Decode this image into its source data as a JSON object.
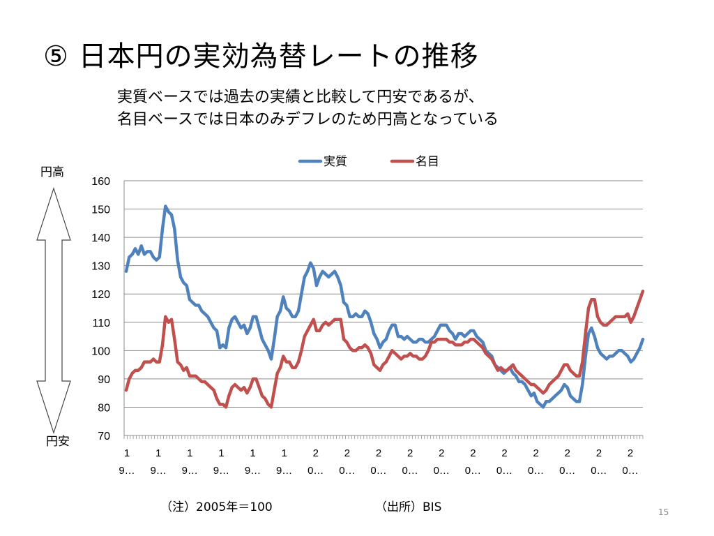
{
  "slide": {
    "title": "⑤ 日本円の実効為替レートの推移",
    "subtitle_lines": [
      "実質ベースでは過去の実績と比較して円安であるが、",
      "名目ベースでは日本のみデフレのため円高となっている"
    ],
    "label_high": "円高",
    "label_low": "円安",
    "note": "（注）2005年＝100",
    "source": "（出所）BIS",
    "page_number": "15"
  },
  "chart_data": {
    "type": "line",
    "ylim": [
      70,
      160
    ],
    "yticks": [
      "70",
      "80",
      "90",
      "100",
      "110",
      "120",
      "130",
      "140",
      "150",
      "160"
    ],
    "xtick_labels": [
      [
        "1",
        "9…"
      ],
      [
        "1",
        "9…"
      ],
      [
        "1",
        "9…"
      ],
      [
        "1",
        "9…"
      ],
      [
        "1",
        "9…"
      ],
      [
        "1",
        "9…"
      ],
      [
        "2",
        "0…"
      ],
      [
        "2",
        "0…"
      ],
      [
        "2",
        "0…"
      ],
      [
        "2",
        "0…"
      ],
      [
        "2",
        "0…"
      ],
      [
        "2",
        "0…"
      ],
      [
        "2",
        "0…"
      ],
      [
        "2",
        "0…"
      ],
      [
        "2",
        "0…"
      ],
      [
        "2",
        "0…"
      ],
      [
        "2",
        "0…"
      ]
    ],
    "legend_position": "top",
    "grid": true,
    "colors": {
      "real": "#4f81bd",
      "nominal": "#c0504d"
    },
    "series": [
      {
        "name": "実質",
        "color": "#4f81bd",
        "values": [
          128,
          133,
          134,
          136,
          134,
          137,
          134,
          135,
          135,
          133,
          132,
          133,
          143,
          151,
          149,
          148,
          143,
          132,
          126,
          124,
          123,
          118,
          117,
          116,
          116,
          114,
          113,
          112,
          110,
          108,
          107,
          101,
          102,
          101,
          108,
          111,
          112,
          110,
          108,
          109,
          106,
          108,
          112,
          112,
          108,
          104,
          102,
          100,
          97,
          104,
          112,
          114,
          119,
          115,
          114,
          112,
          112,
          114,
          120,
          126,
          128,
          131,
          129,
          123,
          126,
          128,
          127,
          126,
          127,
          128,
          126,
          123,
          117,
          116,
          112,
          112,
          113,
          112,
          112,
          114,
          113,
          110,
          106,
          104,
          101,
          103,
          104,
          107,
          109,
          109,
          105,
          105,
          104,
          105,
          104,
          103,
          103,
          104,
          104,
          103,
          103,
          104,
          105,
          107,
          109,
          109,
          109,
          107,
          106,
          104,
          106,
          106,
          105,
          106,
          107,
          107,
          105,
          104,
          103,
          100,
          99,
          98,
          95,
          94,
          93,
          92,
          93,
          94,
          92,
          91,
          89,
          89,
          88,
          86,
          84,
          85,
          82,
          81,
          80,
          82,
          82,
          83,
          84,
          85,
          86,
          88,
          87,
          84,
          83,
          82,
          82,
          88,
          98,
          106,
          108,
          105,
          101,
          99,
          98,
          97,
          98,
          98,
          99,
          100,
          100,
          99,
          98,
          96,
          97,
          99,
          101,
          104
        ]
      },
      {
        "name": "名目",
        "color": "#c0504d",
        "values": [
          86,
          90,
          92,
          93,
          93,
          94,
          96,
          96,
          96,
          97,
          96,
          96,
          102,
          112,
          110,
          111,
          104,
          96,
          95,
          93,
          94,
          91,
          91,
          91,
          90,
          89,
          89,
          88,
          87,
          86,
          83,
          81,
          81,
          80,
          84,
          87,
          88,
          87,
          86,
          87,
          85,
          87,
          90,
          90,
          87,
          84,
          83,
          81,
          80,
          86,
          92,
          94,
          98,
          96,
          96,
          94,
          94,
          96,
          100,
          105,
          107,
          109,
          111,
          107,
          107,
          109,
          110,
          109,
          110,
          111,
          111,
          111,
          104,
          103,
          101,
          100,
          100,
          101,
          101,
          102,
          101,
          99,
          95,
          94,
          93,
          95,
          96,
          98,
          100,
          99,
          98,
          97,
          98,
          98,
          99,
          98,
          98,
          97,
          97,
          98,
          100,
          103,
          103,
          104,
          104,
          104,
          104,
          103,
          103,
          102,
          102,
          102,
          103,
          103,
          104,
          104,
          103,
          102,
          101,
          99,
          98,
          97,
          95,
          93,
          94,
          93,
          93,
          94,
          95,
          93,
          92,
          91,
          90,
          89,
          88,
          88,
          87,
          86,
          85,
          86,
          88,
          89,
          90,
          91,
          93,
          95,
          95,
          93,
          92,
          91,
          91,
          96,
          106,
          115,
          118,
          118,
          112,
          110,
          109,
          109,
          110,
          111,
          112,
          112,
          112,
          112,
          113,
          110,
          112,
          115,
          118,
          121
        ]
      }
    ]
  }
}
